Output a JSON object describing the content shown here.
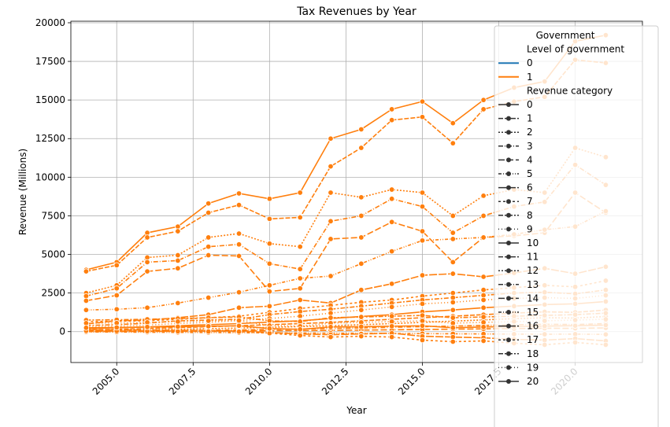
{
  "chart_data": {
    "type": "line",
    "title": "Tax Revenues by Year",
    "xlabel": "Year",
    "ylabel": "Revenue (Millions)",
    "xlim": [
      2003.5,
      2022.2
    ],
    "ylim": [
      -2000,
      20100
    ],
    "x_ticks": [
      2005.0,
      2007.5,
      2010.0,
      2012.5,
      2015.0,
      2017.5,
      2020.0
    ],
    "x_tick_labels": [
      "2005.0",
      "2007.5",
      "2010.0",
      "2012.5",
      "2015.0",
      "2017.5",
      "2020.0"
    ],
    "y_ticks": [
      0,
      2500,
      5000,
      7500,
      10000,
      12500,
      15000,
      17500,
      20000
    ],
    "y_tick_labels": [
      "0",
      "2500",
      "5000",
      "7500",
      "10000",
      "12500",
      "15000",
      "17500",
      "20000"
    ],
    "grid": true,
    "legend": {
      "placement": "top-right",
      "title": "Government",
      "hue_title": "Level of government",
      "hue_entries": [
        {
          "label": "0",
          "color": "#1f77b4"
        },
        {
          "label": "1",
          "color": "#ff7f0e"
        }
      ],
      "style_title": "Revenue category",
      "style_entries": [
        "0",
        "1",
        "2",
        "3",
        "4",
        "5",
        "6",
        "7",
        "8",
        "9",
        "10",
        "11",
        "12",
        "13",
        "14",
        "15",
        "16",
        "17",
        "18",
        "19",
        "20"
      ]
    },
    "series_color": "#ff7f0e",
    "x": [
      2004,
      2005,
      2006,
      2007,
      2008,
      2009,
      2010,
      2011,
      2012,
      2013,
      2014,
      2015,
      2016,
      2017,
      2018,
      2019,
      2020,
      2021
    ],
    "series": [
      {
        "values": [
          4000,
          4500,
          6400,
          6800,
          8300,
          8950,
          8600,
          9000,
          12500,
          13100,
          14400,
          14900,
          13500,
          15000,
          15800,
          16200,
          18800,
          19200
        ]
      },
      {
        "values": [
          3900,
          4300,
          6100,
          6500,
          7700,
          8200,
          7300,
          7400,
          10700,
          11900,
          13700,
          13900,
          12200,
          14400,
          14900,
          15200,
          17600,
          17400
        ]
      },
      {
        "values": [
          2500,
          3000,
          4800,
          4950,
          6100,
          6350,
          5700,
          5500,
          9000,
          8700,
          9200,
          9000,
          7500,
          8800,
          9200,
          9000,
          11900,
          11300
        ]
      },
      {
        "values": [
          2300,
          2800,
          4500,
          4600,
          5500,
          5650,
          4400,
          4050,
          7150,
          7500,
          8600,
          8100,
          6400,
          7500,
          8100,
          8400,
          10800,
          9500
        ]
      },
      {
        "values": [
          2000,
          2350,
          3900,
          4100,
          4950,
          4900,
          2600,
          2800,
          6000,
          6100,
          7100,
          6500,
          4500,
          6100,
          6200,
          6400,
          9000,
          7700
        ]
      },
      {
        "values": [
          1400,
          1450,
          1550,
          1850,
          2200,
          2550,
          3000,
          3450,
          3600,
          4400,
          5200,
          5900,
          6000,
          6100,
          6300,
          6600,
          6800,
          7800
        ]
      },
      {
        "values": [
          500,
          700,
          750,
          900,
          1100,
          1550,
          1650,
          2050,
          1850,
          2700,
          3100,
          3650,
          3750,
          3550,
          3800,
          4100,
          3750,
          4200
        ]
      },
      {
        "values": [
          650,
          680,
          700,
          800,
          900,
          1000,
          1250,
          1500,
          1700,
          1900,
          2050,
          2300,
          2500,
          2700,
          2850,
          3000,
          2900,
          3300
        ]
      },
      {
        "values": [
          400,
          450,
          550,
          700,
          750,
          800,
          1100,
          1300,
          1450,
          1650,
          1850,
          2050,
          2200,
          2350,
          2500,
          2550,
          2450,
          2700
        ]
      },
      {
        "values": [
          300,
          350,
          420,
          530,
          600,
          720,
          850,
          1000,
          1200,
          1400,
          1600,
          1800,
          1900,
          2050,
          2150,
          2200,
          2150,
          2350
        ]
      },
      {
        "values": [
          200,
          250,
          300,
          380,
          450,
          520,
          620,
          700,
          850,
          980,
          1100,
          1280,
          1400,
          1550,
          1650,
          1750,
          1800,
          1950
        ]
      },
      {
        "values": [
          120,
          150,
          200,
          260,
          320,
          380,
          450,
          520,
          600,
          700,
          800,
          900,
          1000,
          1100,
          1200,
          1280,
          1250,
          1400
        ]
      },
      {
        "values": [
          60,
          80,
          110,
          150,
          190,
          230,
          280,
          330,
          380,
          450,
          520,
          600,
          680,
          760,
          840,
          900,
          880,
          980
        ]
      },
      {
        "values": [
          20,
          30,
          50,
          70,
          90,
          110,
          140,
          170,
          200,
          240,
          280,
          320,
          360,
          400,
          440,
          480,
          460,
          520
        ]
      },
      {
        "values": [
          0,
          10,
          20,
          30,
          40,
          50,
          60,
          70,
          80,
          100,
          120,
          140,
          160,
          180,
          200,
          220,
          210,
          240
        ]
      },
      {
        "values": [
          -20,
          -30,
          -40,
          -50,
          -60,
          -70,
          -80,
          -90,
          -100,
          -110,
          -120,
          -130,
          -140,
          -150,
          -160,
          -170,
          -160,
          -180
        ]
      },
      {
        "values": [
          100,
          120,
          100,
          80,
          60,
          40,
          -50,
          -150,
          -200,
          -150,
          -100,
          -300,
          -350,
          -400,
          -500,
          -550,
          -450,
          -600
        ]
      },
      {
        "values": [
          50,
          40,
          30,
          20,
          10,
          0,
          -100,
          -250,
          -350,
          -300,
          -350,
          -550,
          -650,
          -600,
          -750,
          -850,
          -700,
          -850
        ]
      },
      {
        "values": [
          750,
          770,
          800,
          850,
          900,
          950,
          700,
          650,
          900,
          950,
          1000,
          1050,
          900,
          950,
          1000,
          1050,
          1100,
          1200
        ]
      },
      {
        "values": [
          550,
          560,
          600,
          650,
          700,
          720,
          400,
          350,
          550,
          600,
          650,
          700,
          550,
          600,
          650,
          700,
          750,
          800
        ]
      },
      {
        "values": [
          250,
          270,
          300,
          320,
          350,
          380,
          200,
          150,
          300,
          320,
          350,
          380,
          250,
          300,
          330,
          360,
          380,
          420
        ]
      }
    ]
  }
}
